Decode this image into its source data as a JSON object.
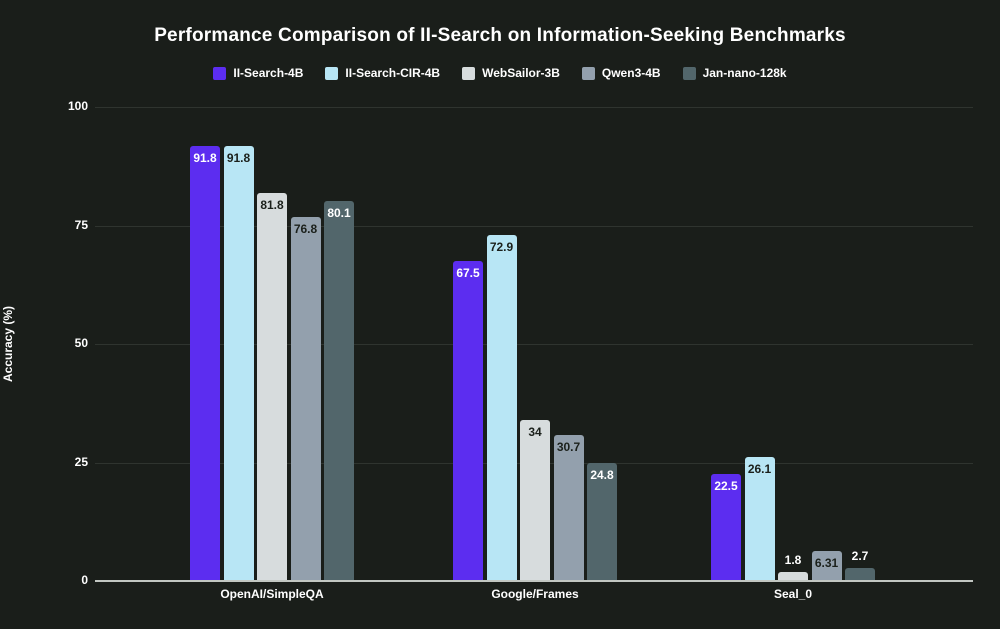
{
  "colors": {
    "background": "#1a1e1a",
    "text": "#ffffff",
    "gridline": "#2f342f",
    "axis_line": "#c2c7c2",
    "dark_value_label": "#1b201b"
  },
  "chart_data": {
    "type": "bar",
    "title": "Performance Comparison of II-Search on Information-Seeking Benchmarks",
    "xlabel": "",
    "ylabel": "Accuracy (%)",
    "ylim": [
      0,
      100
    ],
    "yticks": [
      0,
      25,
      50,
      75,
      100
    ],
    "grid": "horizontal",
    "legend_position": "top",
    "categories": [
      "OpenAI/SimpleQA",
      "Google/Frames",
      "Seal_0"
    ],
    "series": [
      {
        "name": "II-Search-4B",
        "color": "#5c2df0",
        "value_label_color": "#ffffff",
        "values": [
          91.8,
          67.5,
          22.5
        ],
        "labels": [
          "91.8",
          "67.5",
          "22.5"
        ]
      },
      {
        "name": "II-Search-CIR-4B",
        "color": "#b8e6f5",
        "value_label_color": "#1b201b",
        "values": [
          91.8,
          72.9,
          26.1
        ],
        "labels": [
          "91.8",
          "72.9",
          "26.1"
        ]
      },
      {
        "name": "WebSailor-3B",
        "color": "#d7dcdd",
        "value_label_color": "#1b201b",
        "values": [
          81.8,
          34,
          1.8
        ],
        "labels": [
          "81.8",
          "34",
          "1.8"
        ]
      },
      {
        "name": "Qwen3-4B",
        "color": "#93a0ad",
        "value_label_color": "#1b201b",
        "values": [
          76.8,
          30.7,
          6.31
        ],
        "labels": [
          "76.8",
          "30.7",
          "6.31"
        ]
      },
      {
        "name": "Jan-nano-128k",
        "color": "#52666b",
        "value_label_color": "#ffffff",
        "values": [
          80.1,
          24.8,
          2.7
        ],
        "labels": [
          "80.1",
          "24.8",
          "2.7"
        ]
      }
    ]
  }
}
